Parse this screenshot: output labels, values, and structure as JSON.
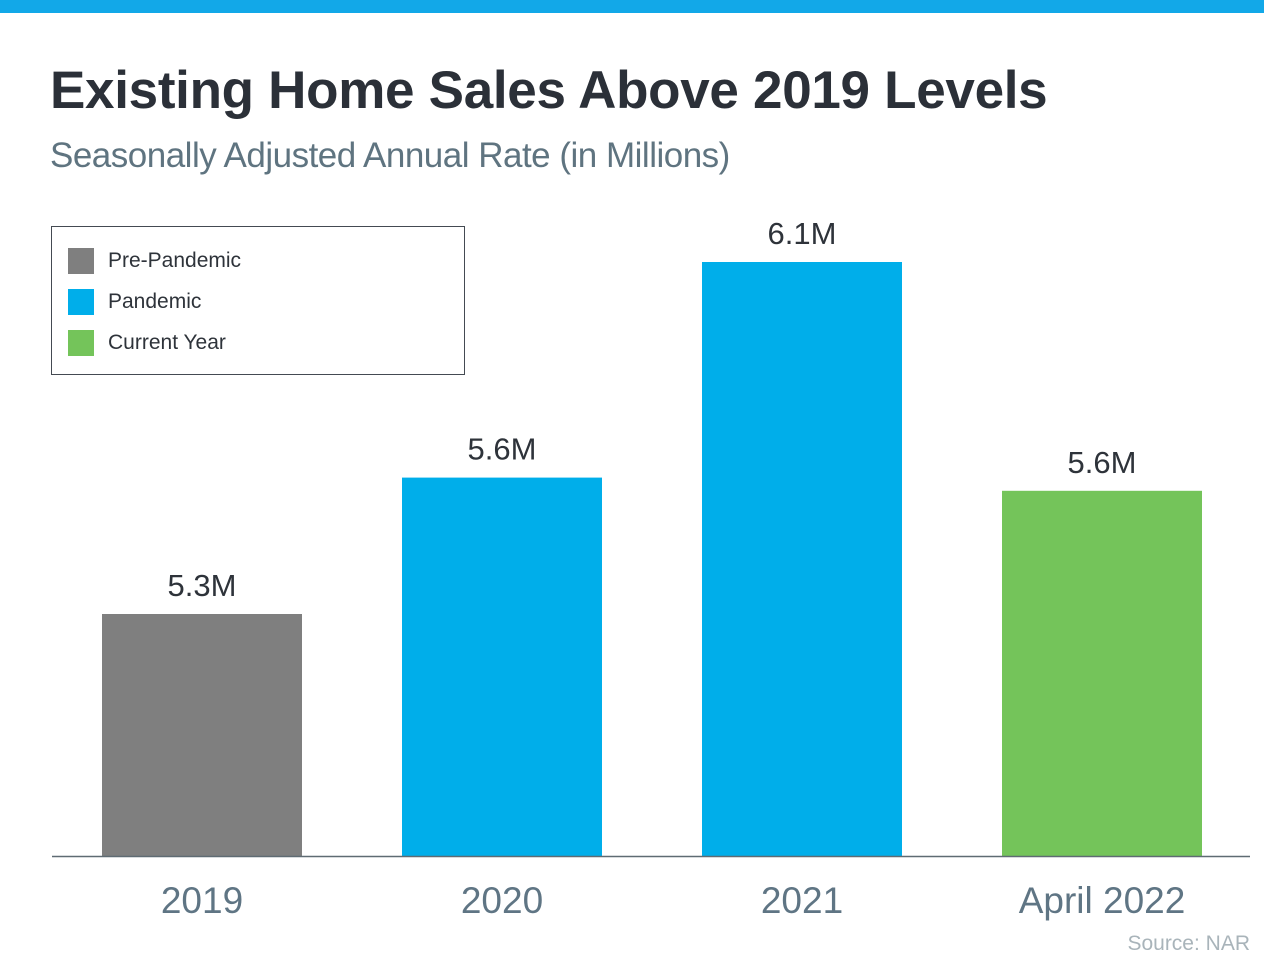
{
  "header": {
    "title": "Existing Home Sales Above 2019 Levels",
    "subtitle": "Seasonally Adjusted Annual Rate (in Millions)"
  },
  "colors": {
    "top_bar": "#12a8e8",
    "pre_pandemic": "#7f7f7f",
    "pandemic": "#00aeea",
    "current_year": "#74c45a",
    "axis": "#5f6b73",
    "tick_label": "#5f7584",
    "data_label": "#2e333a"
  },
  "source": "Source: NAR",
  "chart_data": {
    "type": "bar",
    "title": "Existing Home Sales Above 2019 Levels",
    "subtitle": "Seasonally Adjusted Annual Rate (in Millions)",
    "xlabel": "",
    "ylabel": "",
    "categories": [
      "2019",
      "2020",
      "2021",
      "April 2022"
    ],
    "values": [
      5.3,
      5.6,
      6.1,
      5.6
    ],
    "plotted_values": [
      5.3,
      5.61,
      6.1,
      5.58
    ],
    "data_labels": [
      "5.3M",
      "5.6M",
      "6.1M",
      "5.6M"
    ],
    "bar_groups": [
      "Pre-Pandemic",
      "Pandemic",
      "Pandemic",
      "Current Year"
    ],
    "legend": [
      {
        "label": "Pre-Pandemic",
        "color": "#7f7f7f"
      },
      {
        "label": "Pandemic",
        "color": "#00aeea"
      },
      {
        "label": "Current Year",
        "color": "#74c45a"
      }
    ],
    "legend_position": "top-left",
    "ylim": [
      4.75,
      6.2
    ],
    "y_axis_visible": false,
    "grid": false,
    "units": "Millions"
  }
}
